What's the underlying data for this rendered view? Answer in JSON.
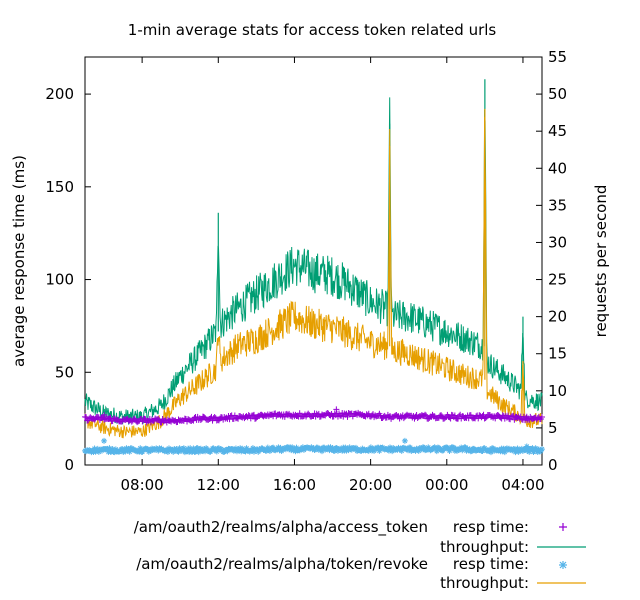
{
  "chart_data": {
    "type": "line",
    "title": "1-min average stats for access token related urls",
    "ylabel": "average response time (ms)",
    "y2label": "requests per second",
    "xlabel": "",
    "x_range_hours": [
      5.0,
      29.0
    ],
    "xticks": [
      {
        "hour": 8,
        "label": "08:00"
      },
      {
        "hour": 12,
        "label": "12:00"
      },
      {
        "hour": 16,
        "label": "16:00"
      },
      {
        "hour": 20,
        "label": "20:00"
      },
      {
        "hour": 24,
        "label": "00:00"
      },
      {
        "hour": 28,
        "label": "04:00"
      }
    ],
    "ylim": [
      0,
      220
    ],
    "yticks": [
      "0",
      "50",
      "100",
      "150",
      "200"
    ],
    "y2lim": [
      0,
      55
    ],
    "y2ticks": [
      "0",
      "5",
      "10",
      "15",
      "20",
      "25",
      "30",
      "35",
      "40",
      "45",
      "50",
      "55"
    ],
    "grid": false,
    "legend_position": "bottom",
    "legend": [
      {
        "group": "/am/oauth2/realms/alpha/access_token",
        "entries": [
          "resp time:",
          "throughput:"
        ]
      },
      {
        "group": "/am/oauth2/realms/alpha/token/revoke",
        "entries": [
          "resp time:",
          "throughput:"
        ]
      }
    ],
    "series": [
      {
        "name": "/am/oauth2/realms/alpha/access_token resp time",
        "axis": "y",
        "style": "points",
        "marker": "+",
        "color": "#9400d3",
        "x": [
          5,
          6,
          7,
          8,
          9,
          10,
          11,
          12,
          13,
          14,
          15,
          16,
          17,
          18,
          19,
          20,
          21,
          22,
          23,
          24,
          25,
          26,
          27,
          28,
          29
        ],
        "values": [
          25,
          25,
          24,
          24,
          24,
          24,
          25,
          25,
          26,
          26,
          27,
          27,
          27,
          27,
          27,
          27,
          26,
          26,
          26,
          26,
          26,
          26,
          26,
          25,
          25
        ]
      },
      {
        "name": "/am/oauth2/realms/alpha/access_token throughput",
        "axis": "y2",
        "style": "line",
        "color": "#009e73",
        "x": [
          5,
          6,
          7,
          8,
          9,
          10,
          11,
          11.9,
          12.0,
          12.1,
          13,
          14,
          15,
          16,
          17,
          18,
          19,
          20,
          20.9,
          21.0,
          21.1,
          22,
          23,
          24,
          25,
          25.9,
          26.0,
          26.1,
          27,
          27.9,
          28.0,
          28.1,
          29
        ],
        "values": [
          8.5,
          7,
          6.5,
          6.5,
          8,
          12,
          15,
          18,
          34,
          19,
          21,
          23,
          25,
          27,
          26,
          25.5,
          24,
          22,
          21,
          46,
          20,
          20,
          19,
          18,
          17,
          16,
          52,
          14,
          12,
          10,
          20,
          9,
          8.5
        ]
      },
      {
        "name": "/am/oauth2/realms/alpha/token/revoke resp time",
        "axis": "y",
        "style": "points",
        "marker": "*",
        "color": "#56b4e9",
        "x": [
          5,
          6,
          7,
          8,
          9,
          10,
          11,
          12,
          13,
          14,
          15,
          16,
          17,
          18,
          19,
          20,
          21,
          22,
          23,
          24,
          25,
          26,
          27,
          28,
          29
        ],
        "values": [
          8,
          8,
          8,
          8,
          8,
          8,
          8,
          8,
          8,
          8,
          8.5,
          8.5,
          8.5,
          8.5,
          8.5,
          8.5,
          8.5,
          8.5,
          8.5,
          8.5,
          8.5,
          8,
          8,
          8,
          8
        ]
      },
      {
        "name": "/am/oauth2/realms/alpha/token/revoke throughput",
        "axis": "y2",
        "style": "line",
        "color": "#e69f00",
        "x": [
          5,
          6,
          7,
          8,
          9,
          10,
          11,
          11.9,
          12.0,
          12.1,
          13,
          14,
          15,
          16,
          17,
          18,
          19,
          20,
          20.9,
          21.0,
          21.1,
          22,
          23,
          24,
          25,
          25.9,
          26.0,
          26.1,
          27,
          27.9,
          28.0,
          28.1,
          29
        ],
        "values": [
          6,
          5,
          4.5,
          4.5,
          6,
          9,
          11,
          13,
          19,
          14,
          16,
          17,
          18.5,
          20,
          19,
          18.5,
          17.5,
          16.5,
          16,
          43,
          15.5,
          15,
          14,
          13,
          12,
          11.5,
          48,
          10,
          8,
          6.5,
          14,
          6,
          6
        ]
      }
    ]
  }
}
